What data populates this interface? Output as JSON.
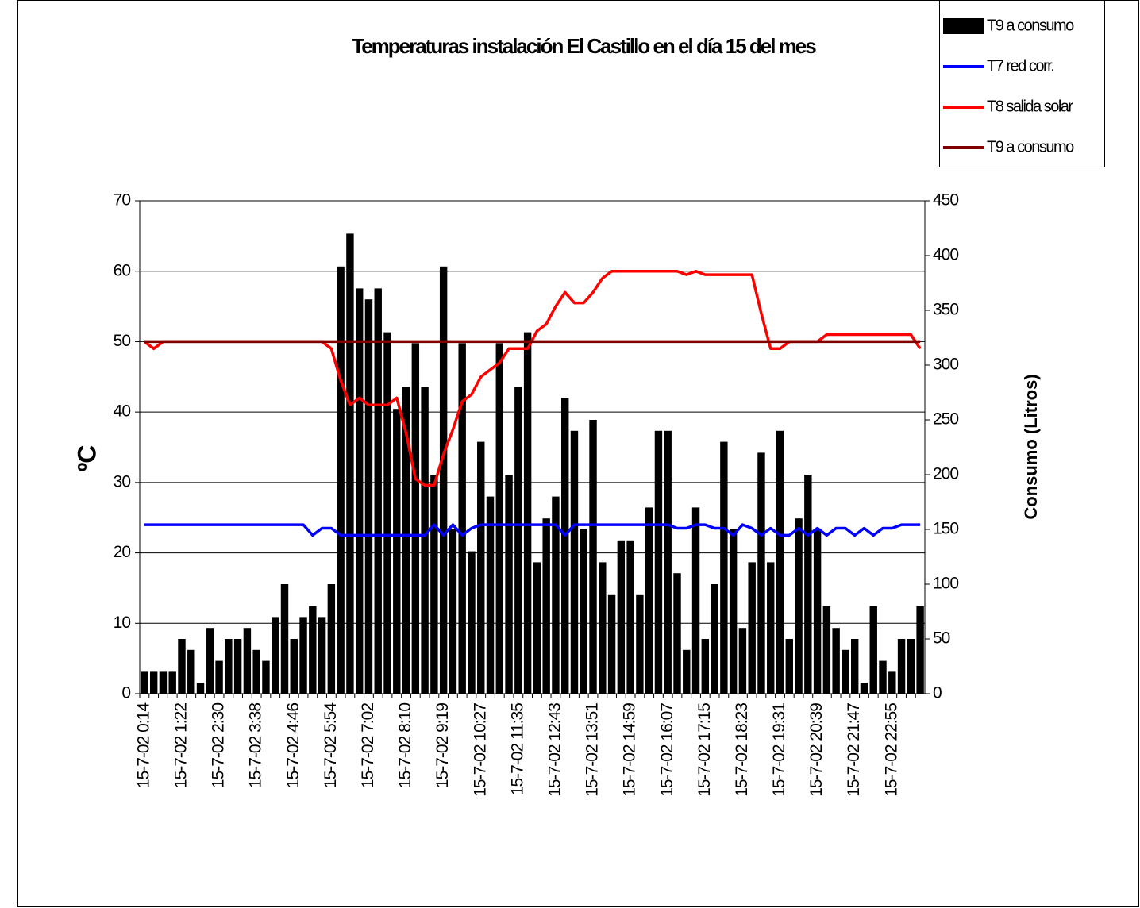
{
  "chart_data": {
    "type": "bar-line",
    "title": "Temperaturas instalación El Castillo  en el día 15 del mes",
    "y_label": "ºC",
    "y2_label": "Consumo (Litros)",
    "categories": [
      "15-7-02 0:14",
      null,
      null,
      null,
      "15-7-02 1:22",
      null,
      null,
      null,
      "15-7-02 2:30",
      null,
      null,
      null,
      "15-7-02 3:38",
      null,
      null,
      null,
      "15-7-02 4:46",
      null,
      null,
      null,
      "15-7-02 5:54",
      null,
      null,
      null,
      "15-7-02 7:02",
      null,
      null,
      null,
      "15-7-02 8:10",
      null,
      null,
      null,
      "15-7-02 9:19",
      null,
      null,
      null,
      "15-7-02 10:27",
      null,
      null,
      null,
      "15-7-02 11:35",
      null,
      null,
      null,
      "15-7-02 12:43",
      null,
      null,
      null,
      "15-7-02 13:51",
      null,
      null,
      null,
      "15-7-02 14:59",
      null,
      null,
      null,
      "15-7-02 16:07",
      null,
      null,
      null,
      "15-7-02 17:15",
      null,
      null,
      null,
      "15-7-02 18:23",
      null,
      null,
      null,
      "15-7-02 19:31",
      null,
      null,
      null,
      "15-7-02 20:39",
      null,
      null,
      null,
      "15-7-02 21:47",
      null,
      null,
      null,
      "15-7-02 22:55",
      null,
      null,
      null
    ],
    "series": [
      {
        "name": "T9 a consumo",
        "type": "bar",
        "axis": "y2",
        "color": "#000000",
        "values": [
          20,
          20,
          20,
          20,
          50,
          40,
          10,
          60,
          30,
          50,
          50,
          60,
          40,
          30,
          70,
          100,
          50,
          70,
          80,
          70,
          100,
          390,
          420,
          370,
          360,
          370,
          330,
          260,
          280,
          320,
          280,
          200,
          390,
          150,
          320,
          130,
          230,
          180,
          320,
          200,
          280,
          330,
          120,
          160,
          180,
          270,
          240,
          150,
          250,
          120,
          90,
          140,
          140,
          90,
          170,
          240,
          240,
          110,
          40,
          170,
          50,
          100,
          230,
          150,
          60,
          120,
          220,
          120,
          240,
          50,
          160,
          200,
          150,
          80,
          60,
          40,
          50,
          10,
          80,
          30,
          20,
          50,
          50,
          80
        ]
      },
      {
        "name": "T7 red corr.",
        "type": "line",
        "color": "#0000ff",
        "values": [
          24,
          24,
          24,
          24,
          24,
          24,
          24,
          24,
          24,
          24,
          24,
          24,
          24,
          24,
          24,
          24,
          24,
          24,
          22.5,
          23.5,
          23.5,
          22.5,
          22.5,
          22.5,
          22.5,
          22.5,
          22.5,
          22.5,
          22.5,
          22.5,
          22.5,
          24,
          22.5,
          24,
          22.5,
          23.5,
          24,
          24,
          24,
          24,
          24,
          24,
          24,
          24,
          24,
          22.5,
          24,
          24,
          24,
          24,
          24,
          24,
          24,
          24,
          24,
          24,
          24,
          23.5,
          23.5,
          24,
          24,
          23.5,
          23.5,
          22.5,
          24,
          23.5,
          22.5,
          23.5,
          22.5,
          22.5,
          23.5,
          22.5,
          23.5,
          22.5,
          23.5,
          23.5,
          22.5,
          23.5,
          22.5,
          23.5,
          23.5,
          24,
          24,
          24
        ]
      },
      {
        "name": "T8 salida solar",
        "type": "line",
        "color": "#ff0000",
        "values": [
          50,
          49,
          50,
          50,
          50,
          50,
          50,
          50,
          50,
          50,
          50,
          50,
          50,
          50,
          50,
          50,
          50,
          50,
          50,
          50,
          49,
          44.5,
          41,
          42,
          41,
          41,
          41,
          42,
          37,
          30.5,
          29.6,
          29.6,
          34,
          37.5,
          41.5,
          42.5,
          45,
          46,
          47,
          49,
          49,
          49,
          51.5,
          52.5,
          55,
          57,
          55.5,
          55.5,
          57,
          59,
          60,
          60,
          60,
          60,
          60,
          60,
          60,
          60,
          59.5,
          60,
          59.5,
          59.5,
          59.5,
          59.5,
          59.5,
          59.5,
          54,
          49,
          49,
          50,
          50,
          50,
          50,
          51,
          51,
          51,
          51,
          51,
          51,
          51,
          51,
          51,
          51,
          49
        ]
      },
      {
        "name": "T9 a consumo",
        "type": "line",
        "color": "#800000",
        "values": [
          50,
          50,
          50,
          50,
          50,
          50,
          50,
          50,
          50,
          50,
          50,
          50,
          50,
          50,
          50,
          50,
          50,
          50,
          50,
          50,
          50,
          50,
          50,
          50,
          50,
          50,
          50,
          50,
          50,
          50,
          50,
          50,
          50,
          50,
          50,
          50,
          50,
          50,
          50,
          50,
          50,
          50,
          50,
          50,
          50,
          50,
          50,
          50,
          50,
          50,
          50,
          50,
          50,
          50,
          50,
          50,
          50,
          50,
          50,
          50,
          50,
          50,
          50,
          50,
          50,
          50,
          50,
          50,
          50,
          50,
          50,
          50,
          50,
          50,
          50,
          50,
          50,
          50,
          50,
          50,
          50,
          50,
          50,
          50
        ]
      }
    ],
    "ylim": [
      0,
      70
    ],
    "yticks": [
      0,
      10,
      20,
      30,
      40,
      50,
      60,
      70
    ],
    "y2lim": [
      0,
      450
    ],
    "y2ticks": [
      0,
      50,
      100,
      150,
      200,
      250,
      300,
      350,
      400,
      450
    ],
    "grid": true,
    "legend": "top-right"
  }
}
